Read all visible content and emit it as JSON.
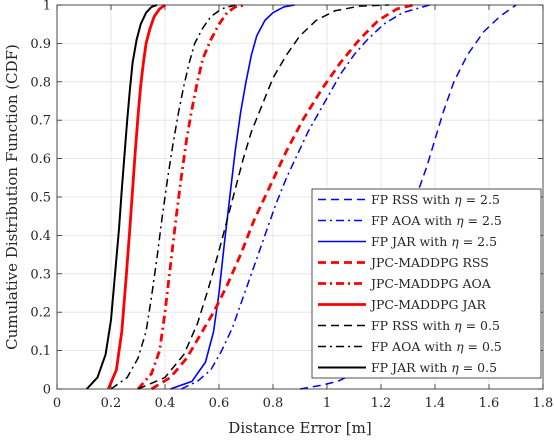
{
  "chart_data": {
    "type": "line",
    "xlabel": "Distance Error [m]",
    "ylabel": "Cumulative Distribution Function (CDF)",
    "xlim": [
      0,
      1.8
    ],
    "ylim": [
      0,
      1
    ],
    "xticks": [
      "0",
      "0.2",
      "0.4",
      "0.6",
      "0.8",
      "1",
      "1.2",
      "1.4",
      "1.6",
      "1.8"
    ],
    "yticks": [
      "0",
      "0.1",
      "0.2",
      "0.3",
      "0.4",
      "0.5",
      "0.6",
      "0.7",
      "0.8",
      "0.9",
      "1"
    ],
    "grid": true,
    "legend_position": "bottom-right",
    "series": [
      {
        "name": "FP RSS with η = 2.5",
        "legend_prefix": "FP RSS with ",
        "legend_suffix": " = 2.5",
        "color": "#0000ff",
        "dash": "dashed",
        "width": 1.5,
        "x": [
          0.9,
          0.98,
          1.04,
          1.1,
          1.16,
          1.2,
          1.23,
          1.25,
          1.27,
          1.3,
          1.33,
          1.37,
          1.4,
          1.43,
          1.47,
          1.52,
          1.58,
          1.64,
          1.7
        ],
        "y": [
          0.0,
          0.01,
          0.02,
          0.04,
          0.07,
          0.1,
          0.15,
          0.22,
          0.3,
          0.4,
          0.5,
          0.58,
          0.65,
          0.72,
          0.8,
          0.87,
          0.93,
          0.97,
          1.0
        ]
      },
      {
        "name": "FP AOA with η = 2.5",
        "legend_prefix": "FP AOA with ",
        "legend_suffix": " = 2.5",
        "color": "#0000ff",
        "dash": "dashdot",
        "width": 1.5,
        "x": [
          0.46,
          0.52,
          0.57,
          0.61,
          0.65,
          0.69,
          0.73,
          0.77,
          0.81,
          0.85,
          0.89,
          0.93,
          0.97,
          1.01,
          1.05,
          1.1,
          1.15,
          1.21,
          1.28,
          1.38
        ],
        "y": [
          0.0,
          0.02,
          0.05,
          0.1,
          0.16,
          0.24,
          0.32,
          0.4,
          0.48,
          0.55,
          0.61,
          0.67,
          0.72,
          0.77,
          0.82,
          0.87,
          0.91,
          0.95,
          0.98,
          1.0
        ]
      },
      {
        "name": "FP JAR with η = 2.5",
        "legend_prefix": "FP JAR with ",
        "legend_suffix": " = 2.5",
        "color": "#0000ff",
        "dash": "solid",
        "width": 1.6,
        "x": [
          0.42,
          0.5,
          0.55,
          0.58,
          0.6,
          0.62,
          0.64,
          0.66,
          0.68,
          0.7,
          0.72,
          0.74,
          0.77,
          0.8,
          0.84,
          0.88
        ],
        "y": [
          0.0,
          0.02,
          0.07,
          0.15,
          0.25,
          0.38,
          0.5,
          0.62,
          0.72,
          0.8,
          0.87,
          0.92,
          0.96,
          0.98,
          0.995,
          1.0
        ]
      },
      {
        "name": "JPC-MADDPG RSS",
        "color": "#ff0000",
        "dash": "dashed",
        "width": 2.8,
        "x": [
          0.35,
          0.42,
          0.48,
          0.53,
          0.58,
          0.63,
          0.68,
          0.73,
          0.79,
          0.85,
          0.91,
          0.98,
          1.05,
          1.12,
          1.19,
          1.26,
          1.32
        ],
        "y": [
          0.0,
          0.03,
          0.08,
          0.14,
          0.2,
          0.27,
          0.35,
          0.44,
          0.53,
          0.62,
          0.7,
          0.78,
          0.85,
          0.91,
          0.96,
          0.99,
          1.0
        ]
      },
      {
        "name": "JPC-MADDPG AOA",
        "color": "#ff0000",
        "dash": "dashdot",
        "width": 2.8,
        "x": [
          0.3,
          0.35,
          0.38,
          0.4,
          0.42,
          0.44,
          0.46,
          0.48,
          0.5,
          0.52,
          0.54,
          0.57,
          0.6,
          0.63,
          0.66,
          0.7
        ],
        "y": [
          0.0,
          0.04,
          0.1,
          0.2,
          0.32,
          0.44,
          0.55,
          0.65,
          0.73,
          0.8,
          0.86,
          0.91,
          0.95,
          0.98,
          0.995,
          1.0
        ]
      },
      {
        "name": "JPC-MADDPG JAR",
        "color": "#ff0000",
        "dash": "solid",
        "width": 2.8,
        "x": [
          0.19,
          0.22,
          0.24,
          0.255,
          0.27,
          0.28,
          0.29,
          0.3,
          0.31,
          0.32,
          0.33,
          0.345,
          0.36,
          0.38,
          0.4
        ],
        "y": [
          0.0,
          0.05,
          0.15,
          0.28,
          0.42,
          0.52,
          0.62,
          0.71,
          0.79,
          0.85,
          0.9,
          0.94,
          0.97,
          0.99,
          1.0
        ]
      },
      {
        "name": "FP RSS with η = 0.5",
        "legend_prefix": "FP RSS with ",
        "legend_suffix": " = 0.5",
        "color": "#000000",
        "dash": "dashed",
        "width": 1.5,
        "x": [
          0.3,
          0.4,
          0.47,
          0.52,
          0.56,
          0.6,
          0.63,
          0.66,
          0.69,
          0.72,
          0.76,
          0.8,
          0.85,
          0.9,
          0.96,
          1.03,
          1.12,
          1.23
        ],
        "y": [
          0.0,
          0.03,
          0.09,
          0.17,
          0.26,
          0.36,
          0.44,
          0.52,
          0.6,
          0.67,
          0.74,
          0.81,
          0.87,
          0.92,
          0.96,
          0.985,
          0.997,
          1.0
        ]
      },
      {
        "name": "FP AOA with η = 0.5",
        "legend_prefix": "FP AOA with ",
        "legend_suffix": " = 0.5",
        "color": "#000000",
        "dash": "dashdot",
        "width": 1.5,
        "x": [
          0.2,
          0.26,
          0.3,
          0.33,
          0.35,
          0.37,
          0.39,
          0.41,
          0.43,
          0.45,
          0.47,
          0.49,
          0.51,
          0.54,
          0.57,
          0.61,
          0.66
        ],
        "y": [
          0.0,
          0.03,
          0.08,
          0.15,
          0.24,
          0.34,
          0.45,
          0.55,
          0.64,
          0.72,
          0.79,
          0.85,
          0.9,
          0.94,
          0.97,
          0.99,
          1.0
        ]
      },
      {
        "name": "FP JAR with η = 0.5",
        "legend_prefix": "FP JAR with ",
        "legend_suffix": " = 0.5",
        "color": "#000000",
        "dash": "solid",
        "width": 2.0,
        "x": [
          0.11,
          0.15,
          0.18,
          0.2,
          0.215,
          0.23,
          0.24,
          0.25,
          0.26,
          0.27,
          0.28,
          0.295,
          0.31,
          0.33,
          0.35,
          0.37
        ],
        "y": [
          0.0,
          0.03,
          0.09,
          0.18,
          0.3,
          0.42,
          0.52,
          0.61,
          0.7,
          0.78,
          0.85,
          0.91,
          0.95,
          0.98,
          0.995,
          1.0
        ]
      }
    ]
  }
}
